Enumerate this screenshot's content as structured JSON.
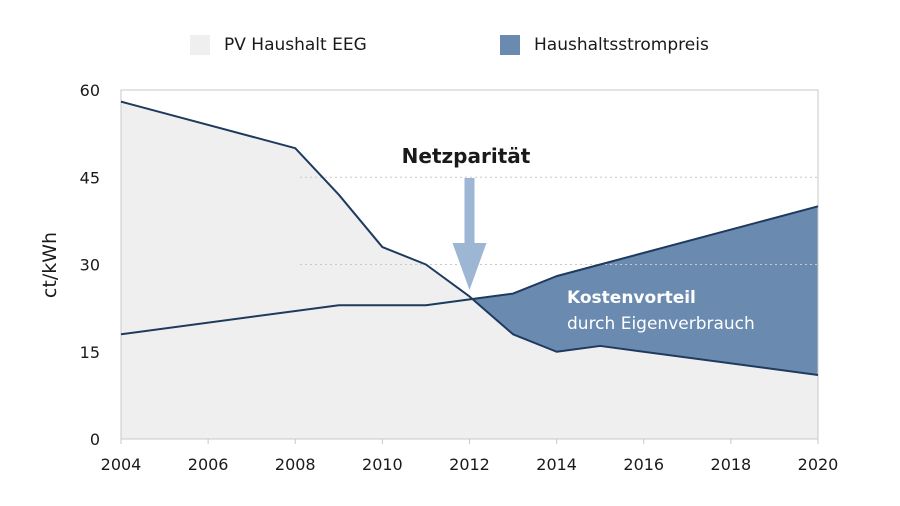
{
  "chart_data": {
    "type": "area",
    "ylabel": "ct/kWh",
    "xlabel": "",
    "x_ticks": [
      "2004",
      "2006",
      "2008",
      "2010",
      "2012",
      "2014",
      "2016",
      "2018",
      "2020"
    ],
    "y_ticks": [
      "0",
      "15",
      "30",
      "45",
      "60"
    ],
    "xlim": [
      2004,
      2020
    ],
    "ylim": [
      0,
      60
    ],
    "grid": "dotted horizontal lines at 30 and 45 (right side)",
    "legend_position": "top",
    "series": [
      {
        "name": "PV Haushalt EEG",
        "color": "#efefef",
        "x": [
          2004,
          2008,
          2009,
          2010,
          2011,
          2012,
          2013,
          2014,
          2015,
          2020
        ],
        "y": [
          58,
          50,
          42,
          33,
          30,
          24.5,
          18,
          15,
          16,
          11
        ]
      },
      {
        "name": "Haushaltsstrompreis",
        "color": "#6a8ab0",
        "x": [
          2004,
          2009,
          2011,
          2012,
          2013,
          2014,
          2015,
          2020
        ],
        "y": [
          18,
          23,
          23,
          24,
          25,
          28,
          30,
          40
        ]
      }
    ],
    "annotations": {
      "crossover_title": "Netzparität",
      "crossover_year": 2012,
      "area_label_bold": "Kostenvorteil",
      "area_label": "durch Eigenverbrauch"
    },
    "colors": {
      "line": "#1f3a5f",
      "area_advantage": "#6a8ab0",
      "pv_fill": "#efefef",
      "arrow": "#9db6d3",
      "frame": "#c8c8c8",
      "gridline": "#c8c8c8"
    }
  }
}
